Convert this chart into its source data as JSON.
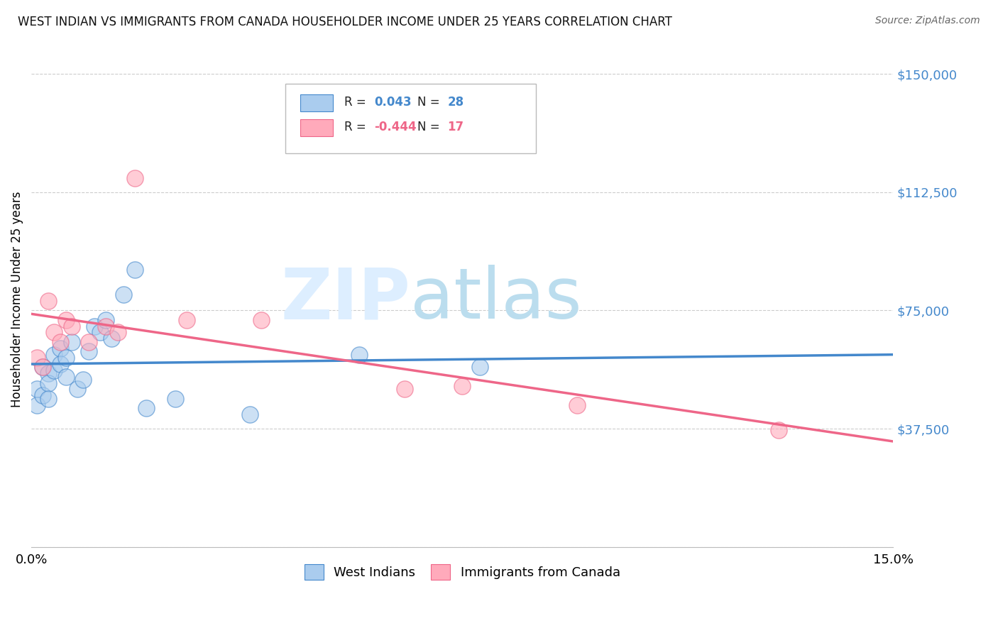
{
  "title": "WEST INDIAN VS IMMIGRANTS FROM CANADA HOUSEHOLDER INCOME UNDER 25 YEARS CORRELATION CHART",
  "source": "Source: ZipAtlas.com",
  "ylabel": "Householder Income Under 25 years",
  "xlim": [
    0.0,
    0.15
  ],
  "ylim": [
    0,
    157000
  ],
  "yticks": [
    0,
    37500,
    75000,
    112500,
    150000
  ],
  "ytick_labels": [
    "",
    "$37,500",
    "$75,000",
    "$112,500",
    "$150,000"
  ],
  "background_color": "#ffffff",
  "grid_color": "#cccccc",
  "blue_color": "#aaccee",
  "pink_color": "#ffaabb",
  "blue_line_color": "#4488cc",
  "pink_line_color": "#ee6688",
  "legend_r_blue": "0.043",
  "legend_n_blue": "28",
  "legend_r_pink": "-0.444",
  "legend_n_pink": "17",
  "west_indians_x": [
    0.001,
    0.001,
    0.002,
    0.002,
    0.003,
    0.003,
    0.003,
    0.004,
    0.004,
    0.005,
    0.005,
    0.006,
    0.006,
    0.007,
    0.008,
    0.009,
    0.01,
    0.011,
    0.012,
    0.013,
    0.014,
    0.016,
    0.018,
    0.02,
    0.025,
    0.038,
    0.057,
    0.078
  ],
  "west_indians_y": [
    50000,
    45000,
    57000,
    48000,
    55000,
    52000,
    47000,
    61000,
    56000,
    63000,
    58000,
    60000,
    54000,
    65000,
    50000,
    53000,
    62000,
    70000,
    68000,
    72000,
    66000,
    80000,
    88000,
    44000,
    47000,
    42000,
    61000,
    57000
  ],
  "canada_x": [
    0.001,
    0.002,
    0.003,
    0.004,
    0.005,
    0.006,
    0.007,
    0.01,
    0.013,
    0.015,
    0.018,
    0.027,
    0.04,
    0.065,
    0.075,
    0.095,
    0.13
  ],
  "canada_y": [
    60000,
    57000,
    78000,
    68000,
    65000,
    72000,
    70000,
    65000,
    70000,
    68000,
    117000,
    72000,
    72000,
    50000,
    51000,
    45000,
    37000
  ],
  "watermark_zip": "ZIP",
  "watermark_atlas": "atlas",
  "watermark_color": "#ddeeff",
  "watermark_atlas_color": "#bbddee",
  "legend_label_blue": "West Indians",
  "legend_label_pink": "Immigrants from Canada"
}
